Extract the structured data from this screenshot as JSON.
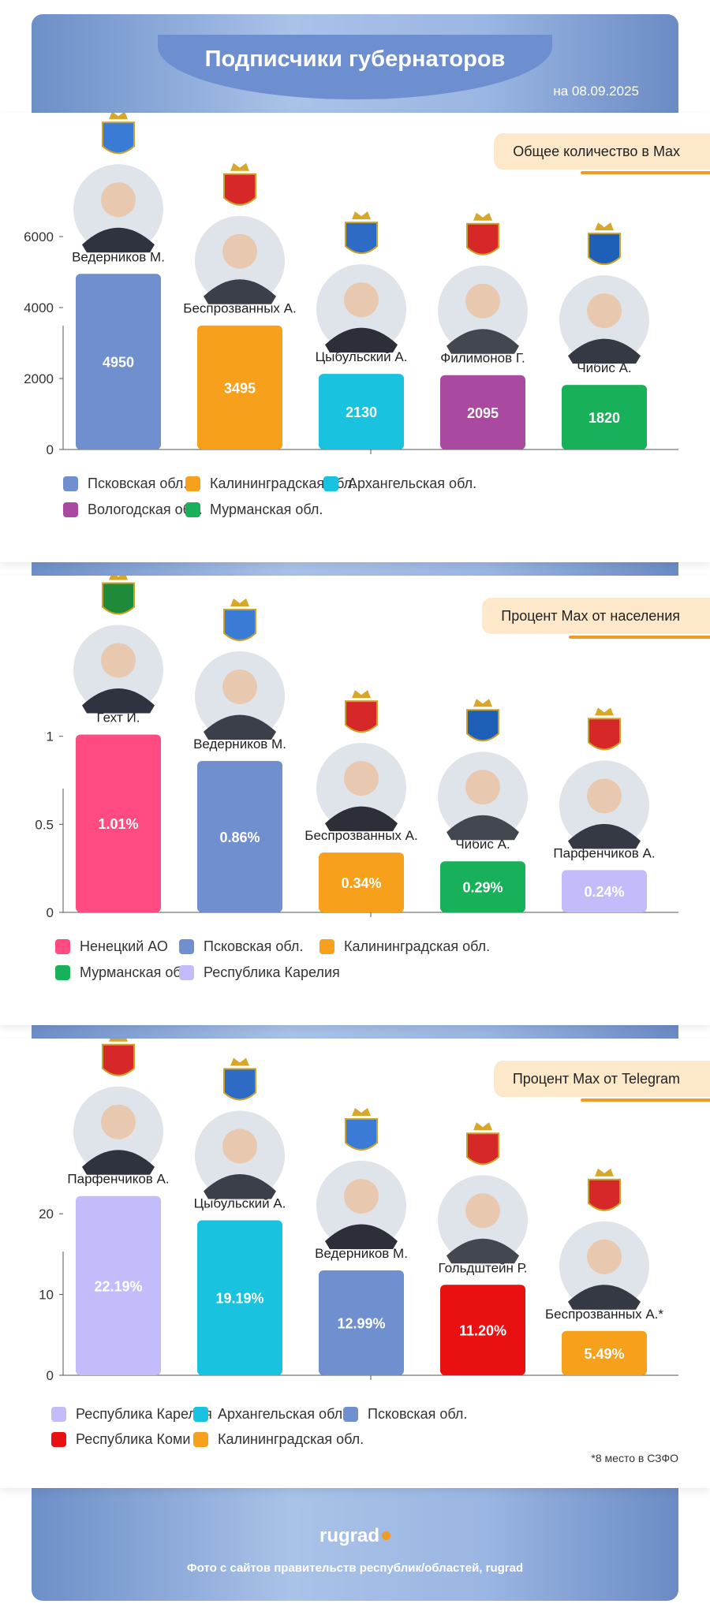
{
  "header": {
    "title": "Подписчики губернаторов",
    "date": "на 08.09.2025"
  },
  "panels": [
    {
      "tag": "Общее количество в Max",
      "footnote": "",
      "legend": [
        {
          "label": "Псковская обл.",
          "color": "#6f8fcf"
        },
        {
          "label": "Калининградская обл.",
          "color": "#f7a01c"
        },
        {
          "label": "Архангельская обл.",
          "color": "#19c3df"
        },
        {
          "label": "Вологодская обл.",
          "color": "#a94aa0"
        },
        {
          "label": "Мурманская обл.",
          "color": "#19b05a"
        }
      ]
    },
    {
      "tag": "Процент Max от населения",
      "footnote": "",
      "legend": [
        {
          "label": "Ненецкий АО",
          "color": "#ff4b82"
        },
        {
          "label": "Псковская обл.",
          "color": "#6f8fcf"
        },
        {
          "label": "Калининградская обл.",
          "color": "#f7a01c"
        },
        {
          "label": "Мурманская обл.",
          "color": "#19b05a"
        },
        {
          "label": "Республика Карелия",
          "color": "#c2bdfa"
        }
      ]
    },
    {
      "tag": "Процент Max от Telegram",
      "footnote": "*8 место в СЗФО",
      "legend": [
        {
          "label": "Республика Карелия",
          "color": "#c2bdfa"
        },
        {
          "label": "Архангельская обл.",
          "color": "#19c3df"
        },
        {
          "label": "Псковская обл.",
          "color": "#6f8fcf"
        },
        {
          "label": "Республика Коми",
          "color": "#e81010"
        },
        {
          "label": "Калининградская обл.",
          "color": "#f7a01c"
        }
      ]
    }
  ],
  "chart_data": [
    {
      "type": "bar",
      "title": "Общее количество в Max",
      "categories": [
        "Ведерников М.",
        "Беспрозванных А.",
        "Цыбульский А.",
        "Филимонов Г.",
        "Чибис А."
      ],
      "values": [
        4950,
        3495,
        2130,
        2095,
        1820
      ],
      "value_labels": [
        "4950",
        "3495",
        "2130",
        "2095",
        "1820"
      ],
      "colors": [
        "#6f8fcf",
        "#f7a01c",
        "#19c3df",
        "#a94aa0",
        "#19b05a"
      ],
      "emblem_colors": [
        "#3a7bd5",
        "#d62828",
        "#2e6bc4",
        "#d62828",
        "#1e5fb8"
      ],
      "yticks": [
        0,
        2000,
        4000,
        6000
      ],
      "ylim": [
        0,
        6600
      ]
    },
    {
      "type": "bar",
      "title": "Процент Max от населения",
      "categories": [
        "Гехт И.",
        "Ведерников М.",
        "Беспрозванных А.",
        "Чибис А.",
        "Парфенчиков А."
      ],
      "values": [
        1.01,
        0.86,
        0.34,
        0.29,
        0.24
      ],
      "value_labels": [
        "1.01%",
        "0.86%",
        "0.34%",
        "0.29%",
        "0.24%"
      ],
      "colors": [
        "#ff4b82",
        "#6f8fcf",
        "#f7a01c",
        "#19b05a",
        "#c2bdfa"
      ],
      "emblem_colors": [
        "#1f8a3a",
        "#3a7bd5",
        "#d62828",
        "#1e5fb8",
        "#d62828"
      ],
      "yticks": [
        0,
        0.5,
        1
      ],
      "ylim": [
        0,
        1.33
      ]
    },
    {
      "type": "bar",
      "title": "Процент Max от Telegram",
      "categories": [
        "Парфенчиков А.",
        "Цыбульский А.",
        "Ведерников М.",
        "Гольдштейн Р.",
        "Беспрозванных А.*"
      ],
      "values": [
        22.19,
        19.19,
        12.99,
        11.2,
        5.49
      ],
      "value_labels": [
        "22.19%",
        "19.19%",
        "12.99%",
        "11.20%",
        "5.49%"
      ],
      "colors": [
        "#c2bdfa",
        "#19c3df",
        "#6f8fcf",
        "#e81010",
        "#f7a01c"
      ],
      "emblem_colors": [
        "#d62828",
        "#2e6bc4",
        "#3a7bd5",
        "#d62828",
        "#d62828"
      ],
      "yticks": [
        0,
        10,
        20
      ],
      "ylim": [
        0,
        29
      ]
    }
  ],
  "footer": {
    "brand": "rugrad",
    "source": "Фото с сайтов правительств республик/областей, rugrad"
  }
}
